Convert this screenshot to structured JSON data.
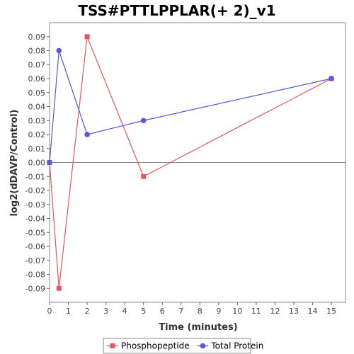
{
  "chart_data": {
    "type": "line",
    "title": "TSS#PTTLPPLAR(+ 2)_v1",
    "xlabel": "Time (minutes)",
    "ylabel": "log2(dDAVP/Control)",
    "xlim": [
      0,
      15.75
    ],
    "ylim": [
      -0.1,
      0.1
    ],
    "x_ticks": [
      "0",
      "1",
      "2",
      "3",
      "4",
      "5",
      "6",
      "7",
      "8",
      "9",
      "10",
      "11",
      "12",
      "13",
      "14",
      "15"
    ],
    "y_ticks": [
      "0.09",
      "0.08",
      "0.07",
      "0.06",
      "0.05",
      "0.04",
      "0.03",
      "0.02",
      "0.01",
      "0.00",
      "-0.01",
      "-0.02",
      "-0.03",
      "-0.04",
      "-0.05",
      "-0.06",
      "-0.07",
      "-0.08",
      "-0.09"
    ],
    "grid": false,
    "legend_position": "bottom",
    "series": [
      {
        "name": "Phosphopeptide",
        "color": "#e8555a",
        "marker": "square",
        "x": [
          0,
          0.5,
          2,
          5,
          15
        ],
        "y": [
          0.0,
          -0.09,
          0.09,
          -0.01,
          0.06
        ]
      },
      {
        "name": "Total Protein",
        "color": "#5555e8",
        "marker": "circle",
        "x": [
          0,
          0.5,
          2,
          5,
          15
        ],
        "y": [
          0.0,
          0.08,
          0.02,
          0.03,
          0.06
        ]
      }
    ]
  }
}
